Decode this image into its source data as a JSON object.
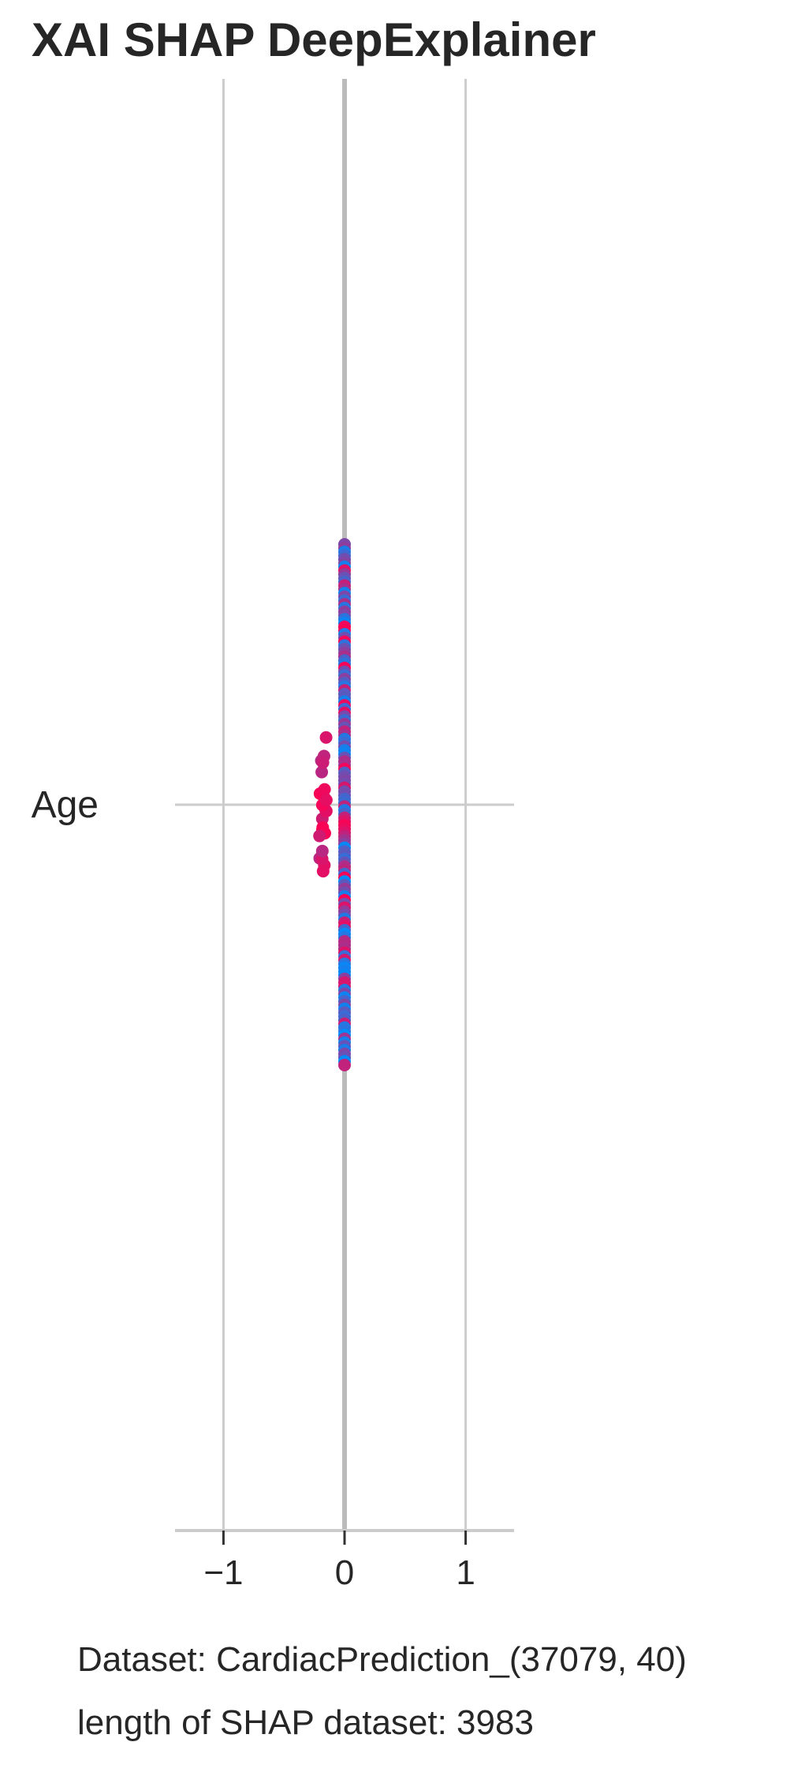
{
  "title": "XAI SHAP DeepExplainer",
  "footer": {
    "dataset_line": "Dataset:  CardiacPrediction_(37079, 40)",
    "length_line": "length of SHAP dataset: 3983"
  },
  "chart_data": {
    "type": "scatter",
    "subtype": "shap-beeswarm",
    "title": "XAI SHAP DeepExplainer",
    "xlabel": "",
    "ylabel": "",
    "features": [
      "Age"
    ],
    "xlim": [
      -1.4,
      1.4
    ],
    "xticks": [
      -1,
      0,
      1
    ],
    "xtick_labels": [
      "−1",
      "0",
      "1"
    ],
    "grid": true,
    "colors": {
      "low": "#008bfb",
      "high": "#ff0052",
      "grid": "#cccccc",
      "axis": "#cccccc",
      "zero_line": "#bbbbbb",
      "text": "#262626"
    },
    "shap_points": [
      {
        "feature": "Age",
        "shap_value": 0.0,
        "spread": 1.0,
        "count": 3960
      },
      {
        "feature": "Age",
        "shap_value": -0.18,
        "spread": 0.09,
        "count": 23
      }
    ]
  }
}
